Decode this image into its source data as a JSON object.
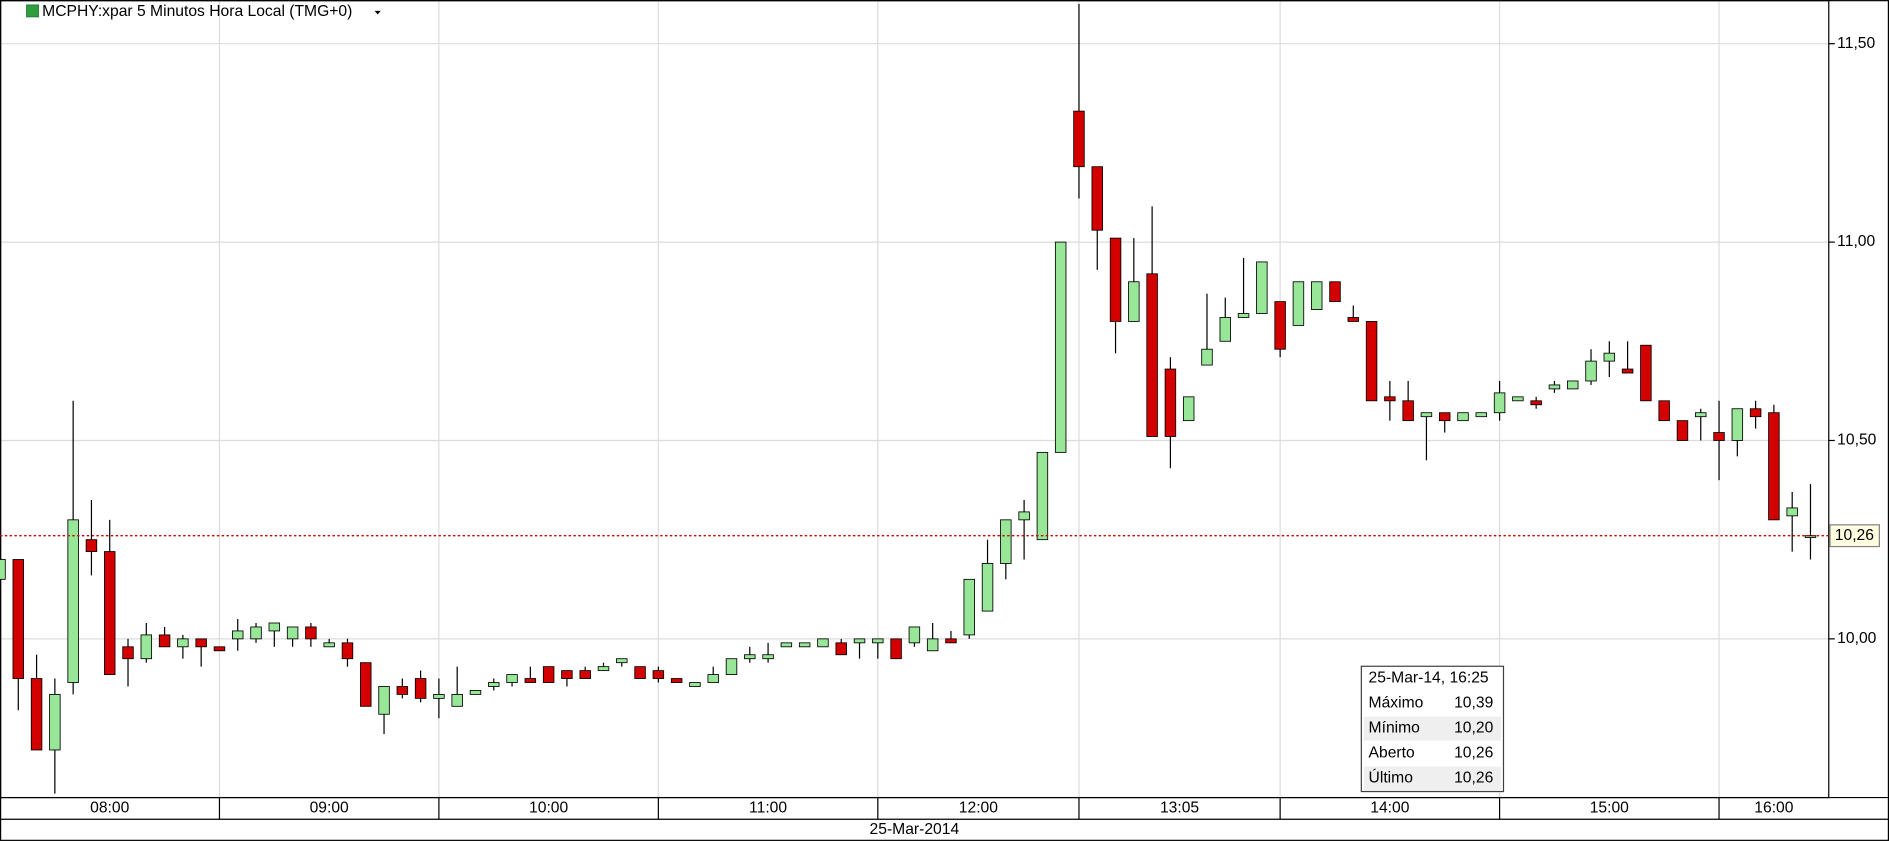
{
  "chart_data": {
    "type": "candlestick",
    "title": "MCPHY:xpar 5 Minutos Hora Local (TMG+0)",
    "date_label": "25-Mar-2014",
    "up_color": "#98e698",
    "down_color": "#d40000",
    "open": [
      10.15,
      10.2,
      9.9,
      9.72,
      9.89,
      10.25,
      10.22,
      9.98,
      9.95,
      10.01,
      9.98,
      10.0,
      9.98,
      10.0,
      10.0,
      10.02,
      10.0,
      10.03,
      9.98,
      9.99,
      9.94,
      9.81,
      9.88,
      9.9,
      9.85,
      9.83,
      9.86,
      9.88,
      9.89,
      9.9,
      9.93,
      9.92,
      9.92,
      9.92,
      9.94,
      9.93,
      9.92,
      9.9,
      9.88,
      9.89,
      9.91,
      9.95,
      9.95,
      9.98,
      9.98,
      9.98,
      9.99,
      9.99,
      9.99,
      10.0,
      9.99,
      9.97,
      10.0,
      10.01,
      10.07,
      10.19,
      10.3,
      10.25,
      10.47,
      11.33,
      11.19,
      11.01,
      10.8,
      10.92,
      10.68,
      10.55,
      10.69,
      10.75,
      10.81,
      10.82,
      10.85,
      10.79,
      10.83,
      10.9,
      10.81,
      10.8,
      10.61,
      10.6,
      10.56,
      10.57,
      10.55,
      10.56,
      10.57,
      10.6,
      10.6,
      10.63,
      10.63,
      10.65,
      10.7,
      10.68,
      10.74,
      10.6,
      10.55,
      10.56,
      10.52,
      10.5,
      10.58,
      10.57,
      10.31,
      10.26
    ],
    "high": [
      10.21,
      10.2,
      9.96,
      9.9,
      10.6,
      10.35,
      10.3,
      10.0,
      10.04,
      10.03,
      10.01,
      10.0,
      9.98,
      10.05,
      10.04,
      10.04,
      10.03,
      10.04,
      10.0,
      10.0,
      9.94,
      9.88,
      9.9,
      9.92,
      9.9,
      9.93,
      9.87,
      9.9,
      9.91,
      9.93,
      9.93,
      9.92,
      9.93,
      9.94,
      9.95,
      9.93,
      9.93,
      9.9,
      9.89,
      9.93,
      9.95,
      9.98,
      9.99,
      9.99,
      9.99,
      10.0,
      10.0,
      10.0,
      10.0,
      10.0,
      10.03,
      10.04,
      10.02,
      10.15,
      10.25,
      10.3,
      10.35,
      10.47,
      11.0,
      11.6,
      11.19,
      11.01,
      11.01,
      11.09,
      10.71,
      10.61,
      10.87,
      10.86,
      10.96,
      10.95,
      10.85,
      10.9,
      10.9,
      10.9,
      10.84,
      10.8,
      10.65,
      10.65,
      10.57,
      10.57,
      10.57,
      10.57,
      10.65,
      10.61,
      10.61,
      10.65,
      10.65,
      10.73,
      10.75,
      10.75,
      10.74,
      10.6,
      10.55,
      10.58,
      10.6,
      10.58,
      10.6,
      10.59,
      10.37,
      10.39
    ],
    "low": [
      10.15,
      9.82,
      9.72,
      9.61,
      9.86,
      10.16,
      9.91,
      9.88,
      9.94,
      9.98,
      9.95,
      9.93,
      9.97,
      9.97,
      9.99,
      9.98,
      9.98,
      9.98,
      9.98,
      9.93,
      9.83,
      9.76,
      9.85,
      9.84,
      9.8,
      9.83,
      9.86,
      9.87,
      9.88,
      9.89,
      9.89,
      9.88,
      9.9,
      9.92,
      9.93,
      9.9,
      9.89,
      9.89,
      9.88,
      9.89,
      9.91,
      9.94,
      9.94,
      9.98,
      9.98,
      9.98,
      9.96,
      9.95,
      9.95,
      9.95,
      9.98,
      9.97,
      9.99,
      10.0,
      10.07,
      10.15,
      10.2,
      10.25,
      10.47,
      11.11,
      10.93,
      10.72,
      10.8,
      10.51,
      10.43,
      10.55,
      10.69,
      10.75,
      10.81,
      10.82,
      10.71,
      10.79,
      10.83,
      10.85,
      10.8,
      10.6,
      10.55,
      10.55,
      10.45,
      10.52,
      10.55,
      10.56,
      10.55,
      10.6,
      10.58,
      10.62,
      10.63,
      10.64,
      10.66,
      10.67,
      10.6,
      10.55,
      10.5,
      10.5,
      10.4,
      10.46,
      10.53,
      10.3,
      10.22,
      10.2
    ],
    "close": [
      10.2,
      9.9,
      9.72,
      9.86,
      10.3,
      10.22,
      9.91,
      9.95,
      10.01,
      9.98,
      10.0,
      9.98,
      9.97,
      10.02,
      10.03,
      10.04,
      10.03,
      10.0,
      9.99,
      9.95,
      9.83,
      9.88,
      9.86,
      9.85,
      9.86,
      9.86,
      9.87,
      9.89,
      9.91,
      9.89,
      9.89,
      9.9,
      9.9,
      9.93,
      9.95,
      9.9,
      9.9,
      9.89,
      9.89,
      9.91,
      9.95,
      9.96,
      9.96,
      9.99,
      9.99,
      10.0,
      9.96,
      10.0,
      10.0,
      9.95,
      10.03,
      10.0,
      9.99,
      10.15,
      10.19,
      10.3,
      10.32,
      10.47,
      11.0,
      11.19,
      11.03,
      10.8,
      10.9,
      10.51,
      10.51,
      10.61,
      10.73,
      10.81,
      10.82,
      10.95,
      10.73,
      10.9,
      10.9,
      10.85,
      10.8,
      10.6,
      10.6,
      10.55,
      10.57,
      10.55,
      10.57,
      10.57,
      10.62,
      10.61,
      10.59,
      10.64,
      10.65,
      10.7,
      10.72,
      10.67,
      10.6,
      10.55,
      10.5,
      10.57,
      10.5,
      10.58,
      10.56,
      10.3,
      10.33,
      10.26
    ],
    "xlim": [
      0,
      100
    ],
    "xticks": [
      {
        "value": 0,
        "label": "08:00"
      },
      {
        "value": 12,
        "label": "09:00"
      },
      {
        "value": 24,
        "label": "10:00"
      },
      {
        "value": 36,
        "label": "11:00"
      },
      {
        "value": 48,
        "label": "12:00"
      },
      {
        "value": 59,
        "label": "13:05"
      },
      {
        "value": 70,
        "label": "14:00"
      },
      {
        "value": 82,
        "label": "15:00"
      },
      {
        "value": 94,
        "label": "16:00"
      }
    ],
    "ylim": [
      9.6,
      11.61
    ],
    "yticks": [
      {
        "value": 10,
        "label": "10,00"
      },
      {
        "value": 10.5,
        "label": "10,50"
      },
      {
        "value": 11,
        "label": "11,00"
      },
      {
        "value": 11.5,
        "label": "11,50"
      }
    ],
    "grid": true,
    "last_price": {
      "value": 10.26,
      "label": "10,26",
      "color": "#cc0000"
    },
    "tooltip": {
      "title": "25-Mar-14, 16:25",
      "rows": [
        {
          "label": "Máximo",
          "value": "10,39"
        },
        {
          "label": "Mínimo",
          "value": "10,20"
        },
        {
          "label": "Aberto",
          "value": "10,26"
        },
        {
          "label": "Último",
          "value": "10,26"
        }
      ]
    }
  }
}
